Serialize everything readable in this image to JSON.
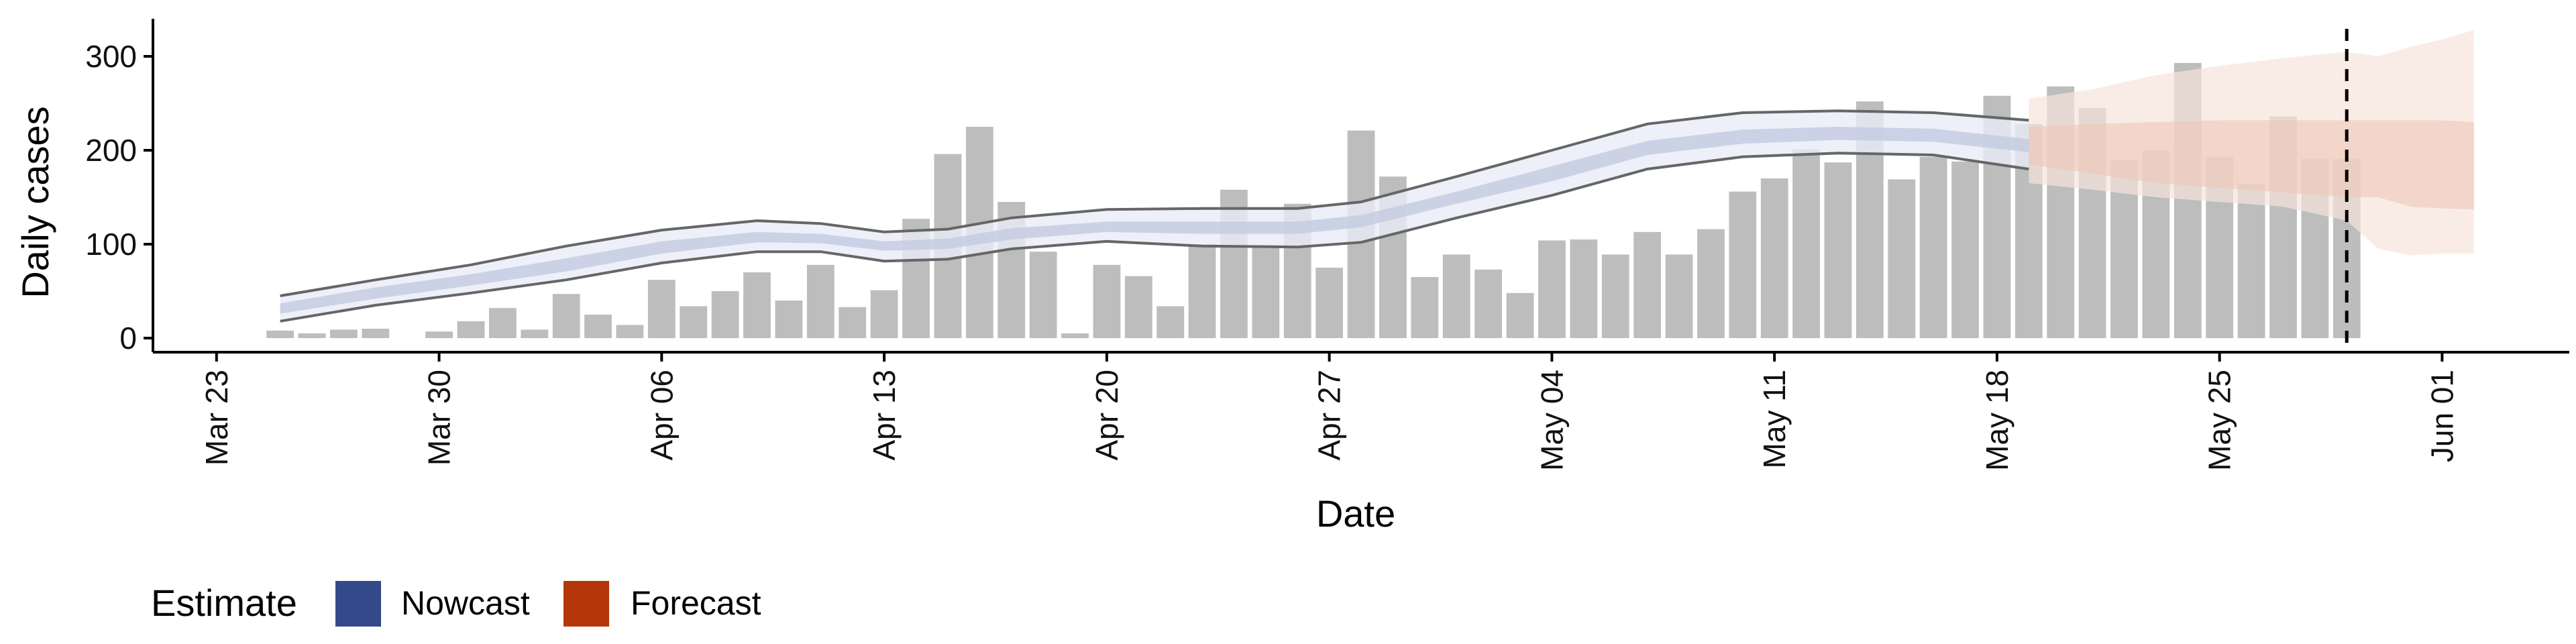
{
  "chart_data": {
    "type": "bar",
    "xlabel": "Date",
    "ylabel": "Daily cases",
    "ylim": [
      -15,
      340
    ],
    "xlim": [
      "2020-03-21",
      "2020-06-05"
    ],
    "y_ticks": [
      0,
      100,
      200,
      300
    ],
    "x_ticks": [
      {
        "date": "2020-03-23",
        "label": "Mar 23"
      },
      {
        "date": "2020-03-30",
        "label": "Mar 30"
      },
      {
        "date": "2020-04-06",
        "label": "Apr 06"
      },
      {
        "date": "2020-04-13",
        "label": "Apr 13"
      },
      {
        "date": "2020-04-20",
        "label": "Apr 20"
      },
      {
        "date": "2020-04-27",
        "label": "Apr 27"
      },
      {
        "date": "2020-05-04",
        "label": "May 04"
      },
      {
        "date": "2020-05-11",
        "label": "May 11"
      },
      {
        "date": "2020-05-18",
        "label": "May 18"
      },
      {
        "date": "2020-05-25",
        "label": "May 25"
      },
      {
        "date": "2020-06-01",
        "label": "Jun 01"
      }
    ],
    "cases": {
      "start_date": "2020-03-25",
      "values": [
        8,
        5,
        9,
        10,
        0,
        7,
        18,
        32,
        9,
        47,
        25,
        14,
        62,
        34,
        50,
        70,
        40,
        78,
        33,
        51,
        127,
        196,
        225,
        145,
        92,
        5,
        78,
        66,
        34,
        100,
        158,
        99,
        143,
        75,
        221,
        172,
        65,
        89,
        73,
        48,
        104,
        105,
        89,
        113,
        89,
        116,
        156,
        170,
        201,
        187,
        252,
        169,
        193,
        188,
        258,
        228,
        268,
        245,
        190,
        200,
        293,
        193,
        164,
        236,
        191,
        191
      ],
      "color": "#bdbdbd"
    },
    "estimate_date": "2020-05-29",
    "legend": {
      "title": "Estimate",
      "position": "bottom",
      "entries": [
        {
          "label": "Nowcast",
          "color": "#34498a"
        },
        {
          "label": "Forecast",
          "color": "#b5360a"
        }
      ]
    },
    "nowcast": {
      "dates": [
        "2020-03-25",
        "2020-03-28",
        "2020-03-31",
        "2020-04-03",
        "2020-04-06",
        "2020-04-09",
        "2020-04-11",
        "2020-04-13",
        "2020-04-15",
        "2020-04-17",
        "2020-04-20",
        "2020-04-23",
        "2020-04-26",
        "2020-04-28",
        "2020-05-01",
        "2020-05-04",
        "2020-05-07",
        "2020-05-10",
        "2020-05-13",
        "2020-05-16",
        "2020-05-19"
      ],
      "lower_90": [
        18,
        35,
        48,
        62,
        80,
        92,
        92,
        82,
        84,
        95,
        103,
        98,
        97,
        102,
        128,
        152,
        180,
        193,
        197,
        195,
        180
      ],
      "upper_90": [
        45,
        62,
        78,
        98,
        115,
        125,
        122,
        113,
        116,
        128,
        137,
        138,
        138,
        145,
        172,
        200,
        228,
        240,
        242,
        240,
        232
      ],
      "lower_50": [
        26,
        42,
        56,
        71,
        90,
        102,
        101,
        93,
        95,
        105,
        113,
        111,
        111,
        118,
        143,
        167,
        195,
        207,
        211,
        209,
        198
      ],
      "upper_50": [
        37,
        54,
        68,
        85,
        103,
        113,
        111,
        103,
        106,
        117,
        124,
        124,
        124,
        131,
        156,
        183,
        210,
        222,
        225,
        223,
        212
      ],
      "band_color_90": "#e8ecf6",
      "band_color_50": "#c5cde3",
      "line_color": "#666666"
    },
    "forecast": {
      "dates": [
        "2020-05-19",
        "2020-05-21",
        "2020-05-23",
        "2020-05-25",
        "2020-05-27",
        "2020-05-29",
        "2020-05-30",
        "2020-05-31",
        "2020-06-01",
        "2020-06-02"
      ],
      "lower_90": [
        165,
        158,
        150,
        145,
        140,
        125,
        95,
        88,
        90,
        90
      ],
      "upper_90": [
        255,
        265,
        280,
        290,
        298,
        305,
        300,
        310,
        318,
        328
      ],
      "lower_50": [
        185,
        175,
        165,
        160,
        155,
        150,
        150,
        140,
        138,
        137
      ],
      "upper_50": [
        225,
        228,
        230,
        232,
        232,
        232,
        232,
        232,
        232,
        230
      ],
      "band_color_90": "#f7e4db",
      "band_color_50": "#ecc8b6"
    }
  }
}
